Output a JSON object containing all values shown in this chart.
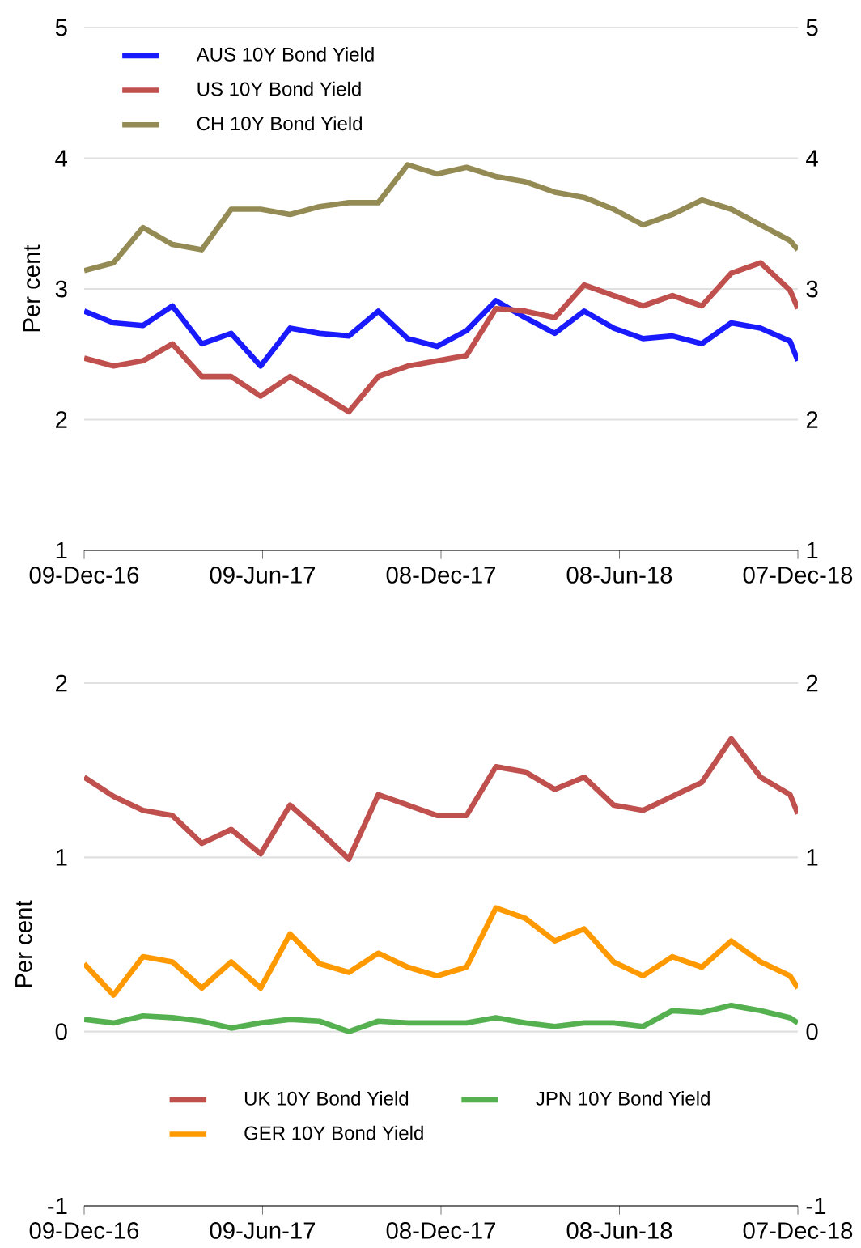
{
  "chart_data": [
    {
      "type": "line",
      "ylabel": "Per cent",
      "xlim": [
        "2016-12-09",
        "2018-12-07"
      ],
      "xticks": [
        {
          "value": "2016-12-09",
          "label": "09-Dec-16"
        },
        {
          "value": "2017-06-09",
          "label": "09-Jun-17"
        },
        {
          "value": "2017-12-08",
          "label": "08-Dec-17"
        },
        {
          "value": "2018-06-08",
          "label": "08-Jun-18"
        },
        {
          "value": "2018-12-07",
          "label": "07-Dec-18"
        }
      ],
      "ylim": [
        1,
        5
      ],
      "yticks": [
        1,
        2,
        3,
        4,
        5
      ],
      "y2lim": [
        1,
        5
      ],
      "y2ticks": [
        1,
        2,
        3,
        4,
        5
      ],
      "grid": "y",
      "legend": "top left",
      "x": [
        "2016-12-09",
        "2017-01-08",
        "2017-02-07",
        "2017-03-09",
        "2017-04-08",
        "2017-05-08",
        "2017-06-07",
        "2017-07-07",
        "2017-08-06",
        "2017-09-05",
        "2017-10-05",
        "2017-11-04",
        "2017-12-04",
        "2018-01-03",
        "2018-02-02",
        "2018-03-04",
        "2018-04-03",
        "2018-05-03",
        "2018-06-02",
        "2018-07-02",
        "2018-08-01",
        "2018-08-31",
        "2018-09-30",
        "2018-10-30",
        "2018-11-29",
        "2018-12-07"
      ],
      "series": [
        {
          "name": "AUS 10Y Bond Yield",
          "color": "#1a1aff",
          "values": [
            2.83,
            2.74,
            2.72,
            2.87,
            2.58,
            2.66,
            2.41,
            2.7,
            2.66,
            2.64,
            2.83,
            2.62,
            2.56,
            2.68,
            2.91,
            2.78,
            2.66,
            2.83,
            2.7,
            2.62,
            2.64,
            2.58,
            2.74,
            2.7,
            2.6,
            2.45
          ]
        },
        {
          "name": "US 10Y Bond Yield",
          "color": "#c0504d",
          "values": [
            2.47,
            2.41,
            2.45,
            2.58,
            2.33,
            2.33,
            2.18,
            2.33,
            2.2,
            2.06,
            2.33,
            2.41,
            2.45,
            2.49,
            2.85,
            2.83,
            2.78,
            3.03,
            2.95,
            2.87,
            2.95,
            2.87,
            3.12,
            3.2,
            2.99,
            2.85
          ]
        },
        {
          "name": "CH 10Y Bond Yield",
          "color": "#948a54",
          "values": [
            3.14,
            3.2,
            3.47,
            3.34,
            3.3,
            3.61,
            3.61,
            3.57,
            3.63,
            3.66,
            3.66,
            3.95,
            3.88,
            3.93,
            3.86,
            3.82,
            3.74,
            3.7,
            3.61,
            3.49,
            3.57,
            3.68,
            3.61,
            3.49,
            3.37,
            3.3
          ]
        }
      ]
    },
    {
      "type": "line",
      "ylabel": "Per cent",
      "xlim": [
        "2016-12-09",
        "2018-12-07"
      ],
      "xticks": [
        {
          "value": "2016-12-09",
          "label": "09-Dec-16"
        },
        {
          "value": "2017-06-09",
          "label": "09-Jun-17"
        },
        {
          "value": "2017-12-08",
          "label": "08-Dec-17"
        },
        {
          "value": "2018-06-08",
          "label": "08-Jun-18"
        },
        {
          "value": "2018-12-07",
          "label": "07-Dec-18"
        }
      ],
      "ylim": [
        -1,
        2
      ],
      "yticks": [
        -1,
        0,
        1,
        2
      ],
      "y2lim": [
        -1,
        2
      ],
      "y2ticks": [
        -1,
        0,
        1,
        2
      ],
      "grid": "y",
      "legend": "bottom",
      "x": [
        "2016-12-09",
        "2017-01-08",
        "2017-02-07",
        "2017-03-09",
        "2017-04-08",
        "2017-05-08",
        "2017-06-07",
        "2017-07-07",
        "2017-08-06",
        "2017-09-05",
        "2017-10-05",
        "2017-11-04",
        "2017-12-04",
        "2018-01-03",
        "2018-02-02",
        "2018-03-04",
        "2018-04-03",
        "2018-05-03",
        "2018-06-02",
        "2018-07-02",
        "2018-08-01",
        "2018-08-31",
        "2018-09-30",
        "2018-10-30",
        "2018-11-29",
        "2018-12-07"
      ],
      "series": [
        {
          "name": "UK 10Y Bond Yield",
          "color": "#c0504d",
          "values": [
            1.46,
            1.35,
            1.27,
            1.24,
            1.08,
            1.16,
            1.02,
            1.3,
            1.15,
            0.99,
            1.36,
            1.3,
            1.24,
            1.24,
            1.52,
            1.49,
            1.39,
            1.46,
            1.3,
            1.27,
            1.35,
            1.43,
            1.68,
            1.46,
            1.36,
            1.25
          ]
        },
        {
          "name": "JPN 10Y Bond Yield",
          "color": "#55b050",
          "values": [
            0.07,
            0.05,
            0.09,
            0.08,
            0.06,
            0.02,
            0.05,
            0.07,
            0.06,
            0.0,
            0.06,
            0.05,
            0.05,
            0.05,
            0.08,
            0.05,
            0.03,
            0.05,
            0.05,
            0.03,
            0.12,
            0.11,
            0.15,
            0.12,
            0.08,
            0.05
          ]
        },
        {
          "name": "GER 10Y Bond Yield",
          "color": "#ff9900",
          "values": [
            0.39,
            0.21,
            0.43,
            0.4,
            0.25,
            0.4,
            0.25,
            0.56,
            0.39,
            0.34,
            0.45,
            0.37,
            0.32,
            0.37,
            0.71,
            0.65,
            0.52,
            0.59,
            0.4,
            0.32,
            0.43,
            0.37,
            0.52,
            0.4,
            0.32,
            0.25
          ]
        }
      ]
    }
  ]
}
